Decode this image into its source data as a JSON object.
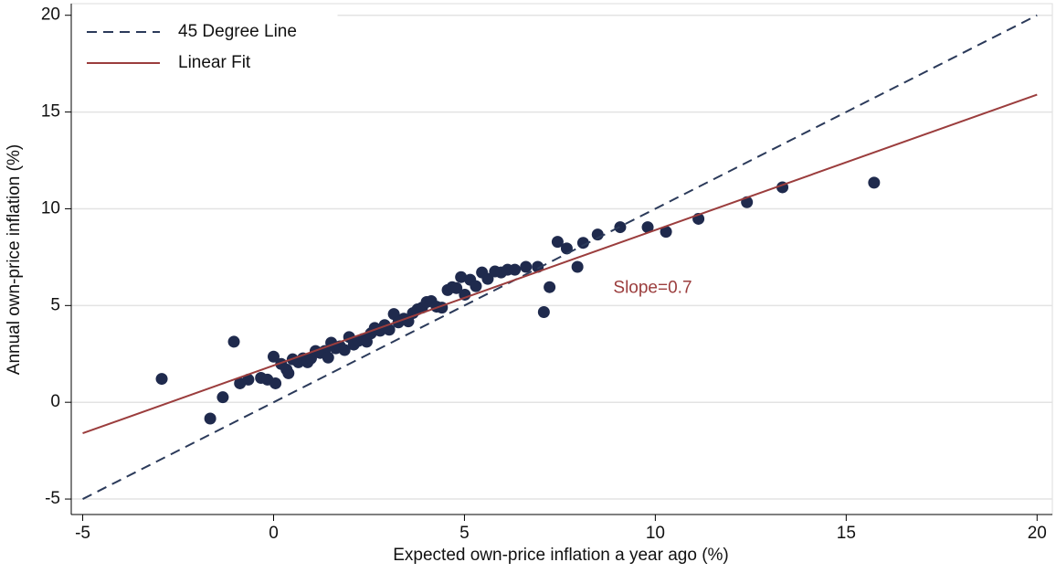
{
  "chart_data": {
    "type": "scatter",
    "xlabel": "Expected own-price inflation a year ago (%)",
    "ylabel": "Annual own-price inflation (%)",
    "xlim": [
      -5.3,
      20.4
    ],
    "ylim": [
      -5.8,
      20.6
    ],
    "xticks": [
      -5,
      0,
      5,
      10,
      15,
      20
    ],
    "yticks": [
      -5,
      0,
      5,
      10,
      15,
      20
    ],
    "grid": true,
    "legend": "upper left",
    "annotation": {
      "text": "Slope=0.7",
      "color": "#9b3d3d"
    },
    "series": [
      {
        "mode": "markers",
        "color": "#1f2a4d",
        "x": [
          -2.93,
          -1.66,
          -1.33,
          -1.04,
          -0.88,
          -0.66,
          -0.33,
          -0.16,
          0.0,
          0.05,
          0.2,
          0.34,
          0.39,
          0.5,
          0.65,
          0.77,
          0.89,
          0.98,
          1.1,
          1.22,
          1.34,
          1.43,
          1.51,
          1.63,
          1.74,
          1.86,
          1.98,
          2.1,
          2.22,
          2.34,
          2.44,
          2.55,
          2.65,
          2.79,
          2.91,
          3.03,
          3.15,
          3.27,
          3.41,
          3.53,
          3.65,
          3.77,
          3.89,
          4.01,
          4.13,
          4.27,
          4.41,
          4.56,
          4.68,
          4.79,
          4.91,
          5.01,
          5.15,
          5.3,
          5.46,
          5.61,
          5.8,
          5.96,
          6.13,
          6.32,
          6.61,
          6.92,
          7.08,
          7.23,
          7.44,
          7.68,
          7.96,
          8.11,
          8.49,
          9.08,
          9.8,
          10.28,
          11.13,
          12.4,
          13.33,
          15.73
        ],
        "values": [
          1.21,
          -0.84,
          0.26,
          3.13,
          0.98,
          1.17,
          1.26,
          1.17,
          2.36,
          0.98,
          1.98,
          1.69,
          1.5,
          2.22,
          2.07,
          2.27,
          2.07,
          2.27,
          2.65,
          2.55,
          2.65,
          2.31,
          3.08,
          2.79,
          2.89,
          2.7,
          3.37,
          2.98,
          3.17,
          3.27,
          3.13,
          3.56,
          3.84,
          3.7,
          3.99,
          3.75,
          4.56,
          4.13,
          4.32,
          4.18,
          4.61,
          4.8,
          4.89,
          5.18,
          5.23,
          4.94,
          4.89,
          5.8,
          5.95,
          5.9,
          6.47,
          5.56,
          6.33,
          6.0,
          6.71,
          6.38,
          6.76,
          6.71,
          6.85,
          6.85,
          7.0,
          7.0,
          4.66,
          5.95,
          8.29,
          7.95,
          7.0,
          8.24,
          8.67,
          9.05,
          9.05,
          8.81,
          9.48,
          10.34,
          11.11,
          11.35
        ]
      },
      {
        "name": "45 Degree Line",
        "mode": "line",
        "dash": true,
        "color": "#2b3a5a",
        "x": [
          -5,
          20
        ],
        "values": [
          -5,
          20
        ]
      },
      {
        "name": "Linear Fit",
        "mode": "line",
        "dash": false,
        "color": "#9b3d3d",
        "x": [
          -5,
          20
        ],
        "values": [
          -1.6,
          15.9
        ]
      }
    ]
  }
}
